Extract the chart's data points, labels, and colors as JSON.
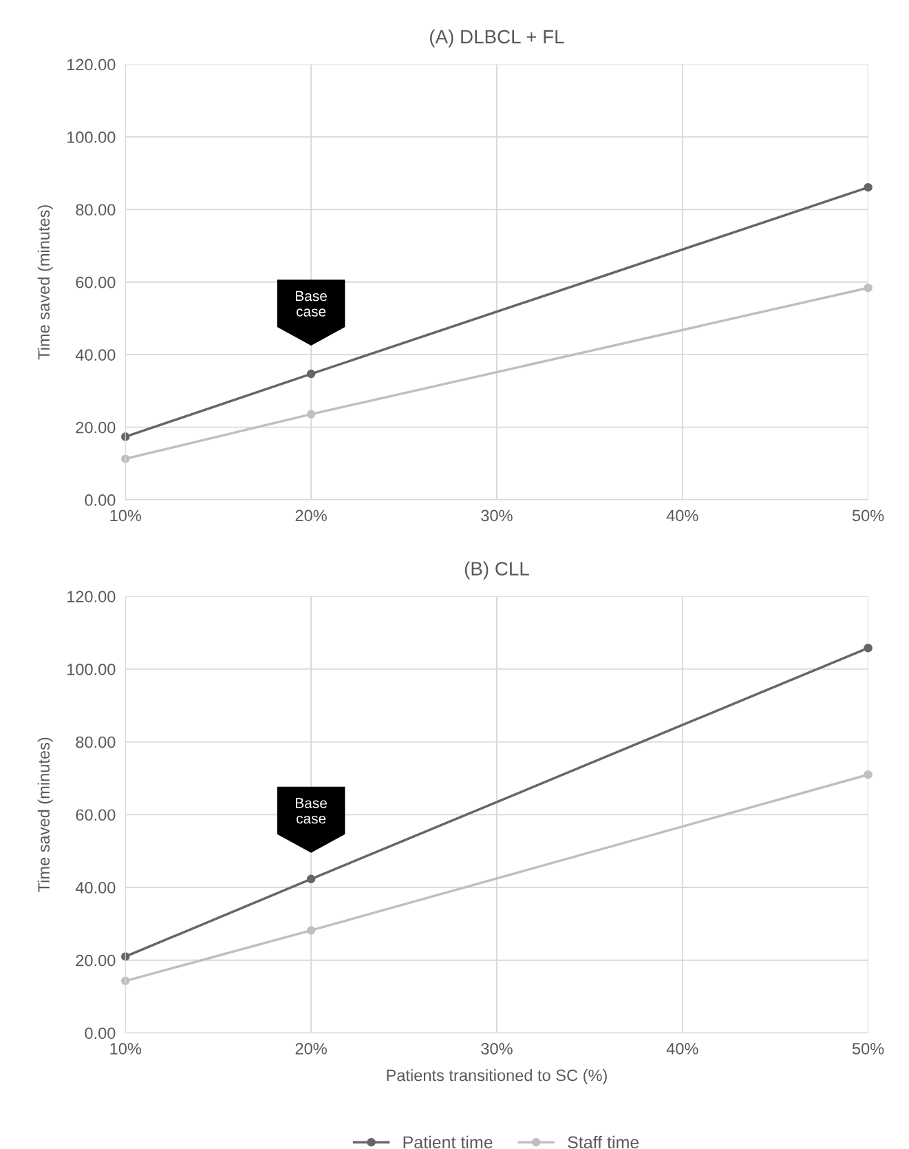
{
  "chart_data": [
    {
      "type": "line",
      "title": "(A) DLBCL + FL",
      "ylabel": "Time saved (minutes)",
      "categories": [
        "10%",
        "20%",
        "30%",
        "40%",
        "50%"
      ],
      "series": [
        {
          "color": "#666666",
          "values": [
            17.4,
            34.7,
            null,
            null,
            86.1
          ]
        },
        {
          "color": "#bfbfbf",
          "values": [
            11.3,
            23.6,
            null,
            null,
            58.4
          ]
        }
      ],
      "ylim": [
        0,
        120
      ],
      "yticks": [
        {
          "value": 0,
          "label": "0.00"
        },
        {
          "value": 20,
          "label": "20.00"
        },
        {
          "value": 40,
          "label": "40.00"
        },
        {
          "value": 60,
          "label": "60.00"
        },
        {
          "value": 80,
          "label": "80.00"
        },
        {
          "value": 100,
          "label": "100.00"
        },
        {
          "value": 120,
          "label": "120.00"
        }
      ],
      "grid": true,
      "marker": "circle",
      "line_style": "solid",
      "annotations": [
        "Base\ncase"
      ]
    },
    {
      "type": "line",
      "title": "(B) CLL",
      "ylabel": "Time saved (minutes)",
      "xlabel": "Patients transitioned to SC (%)",
      "categories": [
        "10%",
        "20%",
        "30%",
        "40%",
        "50%"
      ],
      "series": [
        {
          "name": "Patient time",
          "color": "#666666",
          "values": [
            21.0,
            42.3,
            null,
            null,
            105.8
          ]
        },
        {
          "name": "Staff time",
          "color": "#bfbfbf",
          "values": [
            14.3,
            28.2,
            null,
            null,
            71.0
          ]
        }
      ],
      "ylim": [
        0,
        120
      ],
      "yticks": [
        {
          "value": 0,
          "label": "0.00"
        },
        {
          "value": 20,
          "label": "20.00"
        },
        {
          "value": 40,
          "label": "40.00"
        },
        {
          "value": 60,
          "label": "60.00"
        },
        {
          "value": 80,
          "label": "80.00"
        },
        {
          "value": 100,
          "label": "100.00"
        },
        {
          "value": 120,
          "label": "120.00"
        }
      ],
      "grid": true,
      "marker": "circle",
      "line_style": "solid",
      "legend": "bottom",
      "annotations": [
        "Base\ncase"
      ]
    }
  ]
}
